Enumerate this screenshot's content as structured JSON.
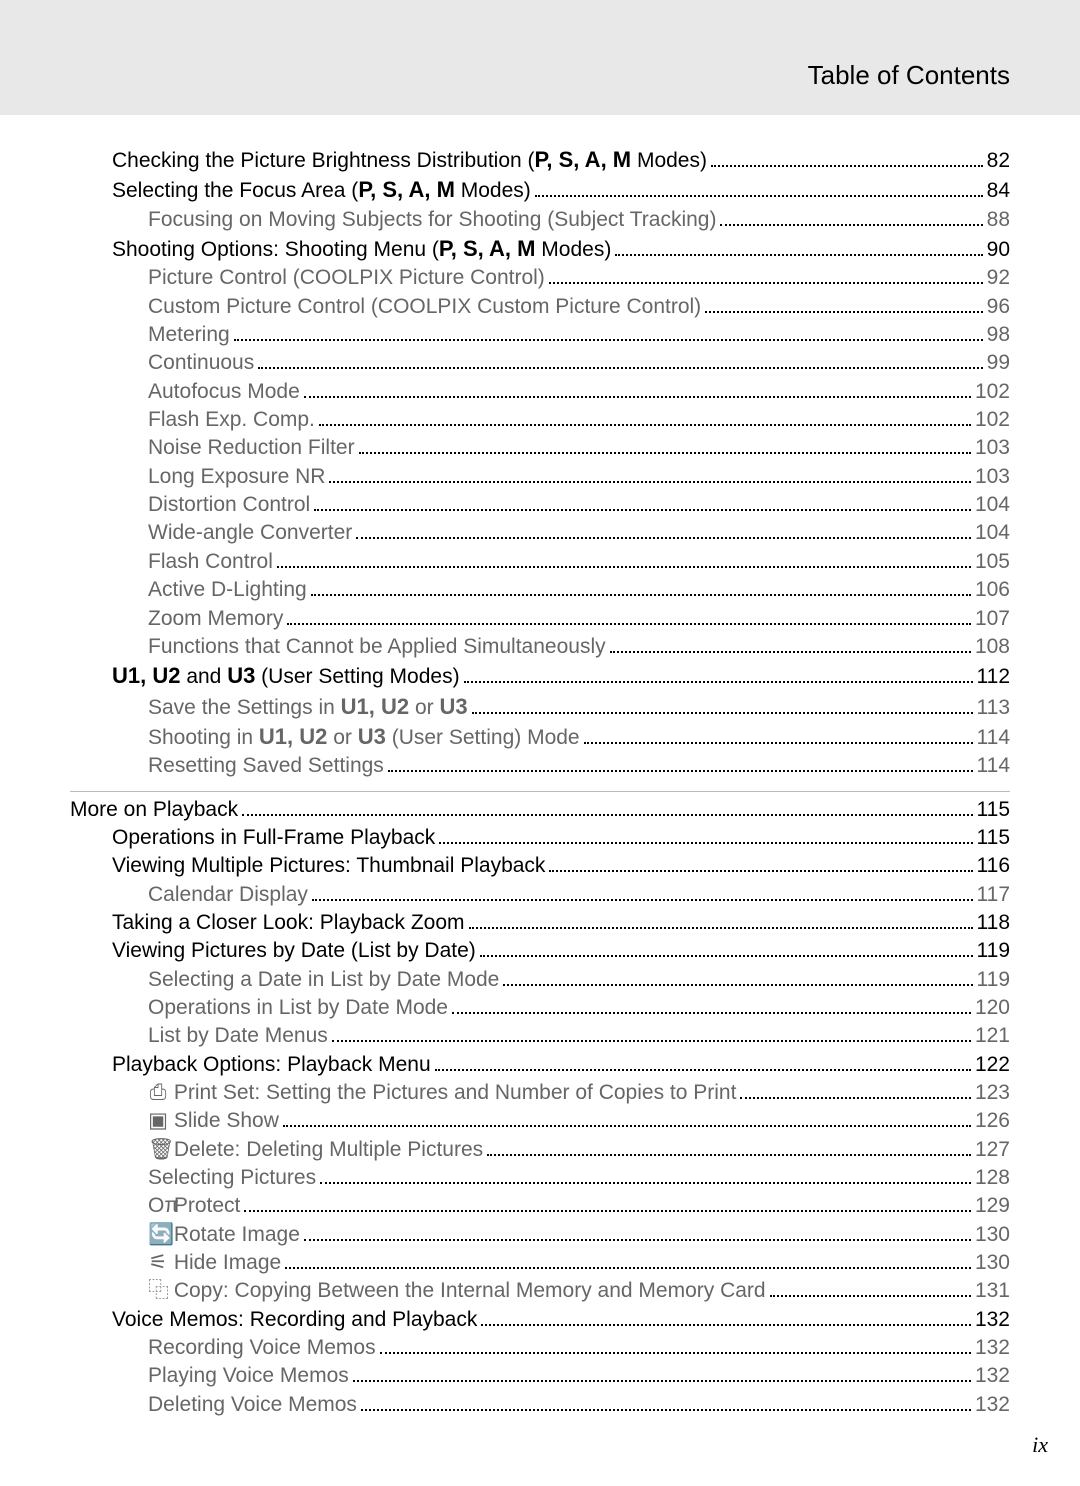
{
  "header": {
    "title": "Table of Contents"
  },
  "section1": [
    {
      "indent": "indent-0",
      "label": "Checking the Picture Brightness Distribution (",
      "modes": "P, S, A, M",
      "suffix": " Modes)",
      "page": "82",
      "muted": false
    },
    {
      "indent": "indent-0",
      "label": "Selecting the Focus Area (",
      "modes": "P, S, A, M",
      "suffix": " Modes)",
      "page": "84",
      "muted": false
    },
    {
      "indent": "indent-2",
      "label": "Focusing on Moving Subjects for Shooting (Subject Tracking)",
      "modes": "",
      "suffix": "",
      "page": "88",
      "muted": true
    },
    {
      "indent": "indent-0",
      "label": "Shooting Options: Shooting Menu (",
      "modes": "P, S, A, M",
      "suffix": " Modes)",
      "page": "90",
      "muted": false
    },
    {
      "indent": "indent-2",
      "label": "Picture Control (COOLPIX Picture Control)",
      "modes": "",
      "suffix": "",
      "page": "92",
      "muted": true
    },
    {
      "indent": "indent-2",
      "label": "Custom Picture Control (COOLPIX Custom Picture Control)",
      "modes": "",
      "suffix": "",
      "page": "96",
      "muted": true
    },
    {
      "indent": "indent-2",
      "label": "Metering",
      "modes": "",
      "suffix": "",
      "page": "98",
      "muted": true
    },
    {
      "indent": "indent-2",
      "label": "Continuous",
      "modes": "",
      "suffix": "",
      "page": "99",
      "muted": true
    },
    {
      "indent": "indent-2",
      "label": "Autofocus Mode",
      "modes": "",
      "suffix": "",
      "page": "102",
      "muted": true
    },
    {
      "indent": "indent-2",
      "label": "Flash Exp. Comp.",
      "modes": "",
      "suffix": "",
      "page": "102",
      "muted": true
    },
    {
      "indent": "indent-2",
      "label": "Noise Reduction Filter",
      "modes": "",
      "suffix": "",
      "page": "103",
      "muted": true
    },
    {
      "indent": "indent-2",
      "label": "Long Exposure NR",
      "modes": "",
      "suffix": "",
      "page": "103",
      "muted": true
    },
    {
      "indent": "indent-2",
      "label": "Distortion Control",
      "modes": "",
      "suffix": "",
      "page": "104",
      "muted": true
    },
    {
      "indent": "indent-2",
      "label": "Wide-angle Converter",
      "modes": "",
      "suffix": "",
      "page": "104",
      "muted": true
    },
    {
      "indent": "indent-2",
      "label": "Flash Control",
      "modes": "",
      "suffix": "",
      "page": "105",
      "muted": true
    },
    {
      "indent": "indent-2",
      "label": "Active D-Lighting",
      "modes": "",
      "suffix": "",
      "page": "106",
      "muted": true
    },
    {
      "indent": "indent-2",
      "label": "Zoom Memory",
      "modes": "",
      "suffix": "",
      "page": "107",
      "muted": true
    },
    {
      "indent": "indent-2",
      "label": "Functions that Cannot be Applied Simultaneously",
      "modes": "",
      "suffix": "",
      "page": "108",
      "muted": true
    },
    {
      "indent": "indent-0",
      "label": "",
      "modes": "U1, U2",
      "mid": " and ",
      "modes2": "U3",
      "suffix": " (User Setting Modes)",
      "page": "112",
      "muted": false,
      "special": "umodes"
    },
    {
      "indent": "indent-2",
      "label": "Save the Settings in ",
      "modes": "U1, U2",
      "mid": " or ",
      "modes2": "U3",
      "suffix": "",
      "page": "113",
      "muted": true,
      "special": "umodes"
    },
    {
      "indent": "indent-2",
      "label": "Shooting in ",
      "modes": "U1, U2",
      "mid": " or ",
      "modes2": "U3",
      "suffix": " (User Setting) Mode",
      "page": "114",
      "muted": true,
      "special": "umodes"
    },
    {
      "indent": "indent-2",
      "label": "Resetting Saved Settings",
      "modes": "",
      "suffix": "",
      "page": "114",
      "muted": true
    }
  ],
  "section2_title": {
    "label": "More on Playback",
    "page": "115"
  },
  "section2": [
    {
      "indent": "indent-0",
      "label": "Operations in Full-Frame Playback",
      "page": "115",
      "muted": false
    },
    {
      "indent": "indent-0",
      "label": "Viewing Multiple Pictures: Thumbnail Playback",
      "page": "116",
      "muted": false
    },
    {
      "indent": "indent-2",
      "label": "Calendar Display",
      "page": "117",
      "muted": true
    },
    {
      "indent": "indent-0",
      "label": "Taking a Closer Look: Playback Zoom",
      "page": "118",
      "muted": false
    },
    {
      "indent": "indent-0",
      "label": "Viewing Pictures by Date (List by Date)",
      "page": "119",
      "muted": false
    },
    {
      "indent": "indent-2",
      "label": "Selecting a Date in List by Date Mode",
      "page": "119",
      "muted": true
    },
    {
      "indent": "indent-2",
      "label": "Operations in List by Date Mode",
      "page": "120",
      "muted": true
    },
    {
      "indent": "indent-2",
      "label": "List by Date Menus",
      "page": "121",
      "muted": true
    },
    {
      "indent": "indent-0",
      "label": "Playback Options: Playback Menu",
      "page": "122",
      "muted": false
    },
    {
      "indent": "indent-2",
      "icon": "print-set-icon",
      "iconGlyph": "⎙",
      "label": " Print Set: Setting the Pictures and Number of Copies to Print",
      "page": "123",
      "muted": true
    },
    {
      "indent": "indent-2",
      "icon": "slide-show-icon",
      "iconGlyph": "▣",
      "label": " Slide Show",
      "page": "126",
      "muted": true
    },
    {
      "indent": "indent-2",
      "icon": "delete-icon",
      "iconGlyph": "🗑",
      "label": " Delete: Deleting Multiple Pictures",
      "page": "127",
      "muted": true
    },
    {
      "indent": "indent-2",
      "label": "Selecting Pictures",
      "page": "128",
      "muted": true
    },
    {
      "indent": "indent-2",
      "icon": "protect-icon",
      "iconGlyph": "Oπ",
      "label": " Protect",
      "page": "129",
      "muted": true
    },
    {
      "indent": "indent-2",
      "icon": "rotate-icon",
      "iconGlyph": "🔄",
      "label": " Rotate Image",
      "page": "130",
      "muted": true
    },
    {
      "indent": "indent-2",
      "icon": "hide-icon",
      "iconGlyph": "⚟",
      "label": " Hide Image",
      "page": "130",
      "muted": true
    },
    {
      "indent": "indent-2",
      "icon": "copy-icon",
      "iconGlyph": "⿻",
      "label": " Copy: Copying Between the Internal Memory and Memory Card",
      "page": "131",
      "muted": true
    },
    {
      "indent": "indent-0",
      "label": "Voice Memos: Recording and Playback",
      "page": "132",
      "muted": false
    },
    {
      "indent": "indent-2",
      "label": "Recording Voice Memos",
      "page": "132",
      "muted": true
    },
    {
      "indent": "indent-2",
      "label": "Playing Voice Memos",
      "page": "132",
      "muted": true
    },
    {
      "indent": "indent-2",
      "label": "Deleting Voice Memos",
      "page": "132",
      "muted": true
    }
  ],
  "page_number": "ix"
}
